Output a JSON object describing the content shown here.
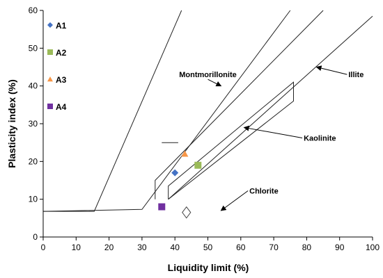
{
  "chart_data": {
    "type": "scatter",
    "title": "",
    "xlabel": "Liquidity limit (%)",
    "ylabel": "Plasticity index (%)",
    "xlim": [
      0,
      100
    ],
    "ylim": [
      0,
      60
    ],
    "xticks": [
      0,
      10,
      20,
      30,
      40,
      50,
      60,
      70,
      80,
      90,
      100
    ],
    "yticks": [
      0,
      10,
      20,
      30,
      40,
      50,
      60
    ],
    "grid": false,
    "legend_position": "top-left",
    "series": [
      {
        "name": "A1",
        "marker": "diamond",
        "color": "#4472C4",
        "x": [
          40
        ],
        "y": [
          17
        ]
      },
      {
        "name": "A2",
        "marker": "square",
        "color": "#9BBB59",
        "x": [
          47
        ],
        "y": [
          19
        ]
      },
      {
        "name": "A3",
        "marker": "triangle",
        "color": "#F79646",
        "x": [
          43
        ],
        "y": [
          22
        ]
      },
      {
        "name": "A4",
        "marker": "square",
        "color": "#7030A0",
        "x": [
          36
        ],
        "y": [
          8
        ]
      }
    ],
    "zones": [
      {
        "points": [
          [
            0,
            6.8
          ],
          [
            15.5,
            6.8
          ],
          [
            42,
            60
          ]
        ]
      },
      {
        "points": [
          [
            0,
            6.8
          ],
          [
            30,
            7.3
          ],
          [
            75,
            60
          ]
        ]
      },
      {
        "points": [
          [
            36,
            25
          ],
          [
            41,
            25
          ]
        ]
      },
      {
        "points": [
          [
            34,
            10
          ],
          [
            34,
            15
          ],
          [
            85,
            60
          ]
        ]
      },
      {
        "points": [
          [
            38,
            10
          ],
          [
            38,
            13.5
          ],
          [
            76,
            41
          ],
          [
            76,
            36
          ],
          [
            38,
            10
          ]
        ]
      },
      {
        "points": [
          [
            38,
            10
          ],
          [
            100,
            58.5
          ]
        ]
      }
    ],
    "annotations": [
      {
        "text": "Montmorillonite",
        "label_at": [
          50,
          42.3
        ],
        "arrow_to": [
          54,
          40
        ]
      },
      {
        "text": "Illite",
        "label_at": [
          95,
          42.3
        ],
        "arrow_to": [
          83,
          45
        ]
      },
      {
        "text": "Kaolinite",
        "label_at": [
          84,
          25.5
        ],
        "arrow_to": [
          61,
          29
        ]
      },
      {
        "text": "Chlorite",
        "label_at": [
          67,
          11.5
        ],
        "arrow_to": [
          54,
          7
        ]
      }
    ],
    "chlorite_marker": {
      "x": 43.5,
      "y": 6.5,
      "marker": "diamond-open"
    }
  }
}
